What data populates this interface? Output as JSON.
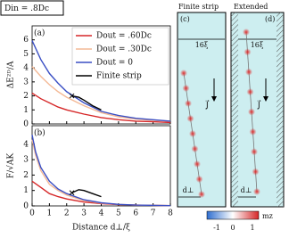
{
  "header": {
    "label": "Din = .8Dc"
  },
  "chart_data": [
    {
      "type": "line",
      "panel": "(a)",
      "ylabel": "ΔE²ᴰ/A",
      "xlim": [
        0,
        8
      ],
      "ylim": [
        0,
        7
      ],
      "xticks": [
        0,
        1,
        2,
        3,
        4,
        5,
        6,
        7,
        8
      ],
      "yticks": [
        0,
        1,
        2,
        3,
        4,
        5,
        6
      ],
      "legend": "upper right",
      "series": [
        {
          "name": "Dout = .60Dc",
          "color": "#d62728",
          "x": [
            0,
            0.5,
            1,
            1.5,
            2,
            3,
            4,
            5,
            6,
            7,
            8
          ],
          "values": [
            2.2,
            1.8,
            1.5,
            1.2,
            1.0,
            0.7,
            0.45,
            0.3,
            0.2,
            0.15,
            0.1
          ]
        },
        {
          "name": "Dout = .30Dc",
          "color": "#f4b996",
          "x": [
            0,
            0.5,
            1,
            1.5,
            2,
            3,
            4,
            5,
            6,
            7,
            8
          ],
          "values": [
            4.1,
            3.4,
            2.8,
            2.3,
            1.9,
            1.3,
            0.8,
            0.5,
            0.35,
            0.25,
            0.2
          ]
        },
        {
          "name": "Dout = 0",
          "color": "#3a4fc4",
          "x": [
            0,
            0.5,
            1,
            1.5,
            2,
            3,
            4,
            5,
            6,
            7,
            8
          ],
          "values": [
            5.95,
            4.6,
            3.6,
            2.9,
            2.3,
            1.5,
            0.9,
            0.6,
            0.4,
            0.3,
            0.2
          ]
        },
        {
          "name": "Finite strip",
          "color": "#000000",
          "marker": "x",
          "x": [
            2.3,
            2.7,
            3.0,
            3.5,
            4.0
          ],
          "values": [
            2.0,
            1.9,
            1.7,
            1.3,
            1.0
          ]
        }
      ]
    },
    {
      "type": "line",
      "panel": "(b)",
      "ylabel": "F/√AK",
      "xlabel": "Distance d⊥/ξ",
      "xlim": [
        0,
        8
      ],
      "ylim": [
        0,
        5.2
      ],
      "xticks": [
        0,
        1,
        2,
        3,
        4,
        5,
        6,
        7,
        8
      ],
      "yticks": [
        0,
        1,
        2,
        3,
        4
      ],
      "series": [
        {
          "color": "#d62728",
          "x": [
            0,
            0.5,
            1,
            1.5,
            2,
            3,
            4,
            5,
            6,
            8
          ],
          "values": [
            1.6,
            1.2,
            0.8,
            0.6,
            0.45,
            0.25,
            0.15,
            0.08,
            0.05,
            0.02
          ]
        },
        {
          "color": "#f4b996",
          "x": [
            0,
            0.2,
            0.5,
            1,
            1.5,
            2,
            3,
            4,
            5,
            6,
            8
          ],
          "values": [
            4.3,
            3.3,
            2.3,
            1.4,
            1.0,
            0.7,
            0.35,
            0.18,
            0.1,
            0.05,
            0.02
          ]
        },
        {
          "color": "#3a4fc4",
          "x": [
            0,
            0.2,
            0.5,
            1,
            1.5,
            2,
            3,
            4,
            5,
            6,
            8
          ],
          "values": [
            4.6,
            3.5,
            2.5,
            1.6,
            1.1,
            0.8,
            0.4,
            0.2,
            0.1,
            0.05,
            0.02
          ]
        },
        {
          "color": "#000000",
          "marker": "x",
          "x": [
            2.3,
            2.7,
            3.0,
            3.5,
            4.0
          ],
          "values": [
            0.85,
            1.05,
            1.0,
            0.8,
            0.6
          ]
        }
      ]
    }
  ],
  "panels": {
    "c": {
      "title": "Finite strip",
      "label": "(c)",
      "width": "16ξ",
      "current": "J⃗",
      "distance": "d⊥"
    },
    "d": {
      "title": "Extended",
      "label": "(d)",
      "width": "16ξ",
      "current": "J⃗",
      "distance": "d⊥"
    },
    "colorbar": {
      "ticks": [
        "-1",
        "0",
        "1"
      ],
      "label": "mz"
    }
  }
}
